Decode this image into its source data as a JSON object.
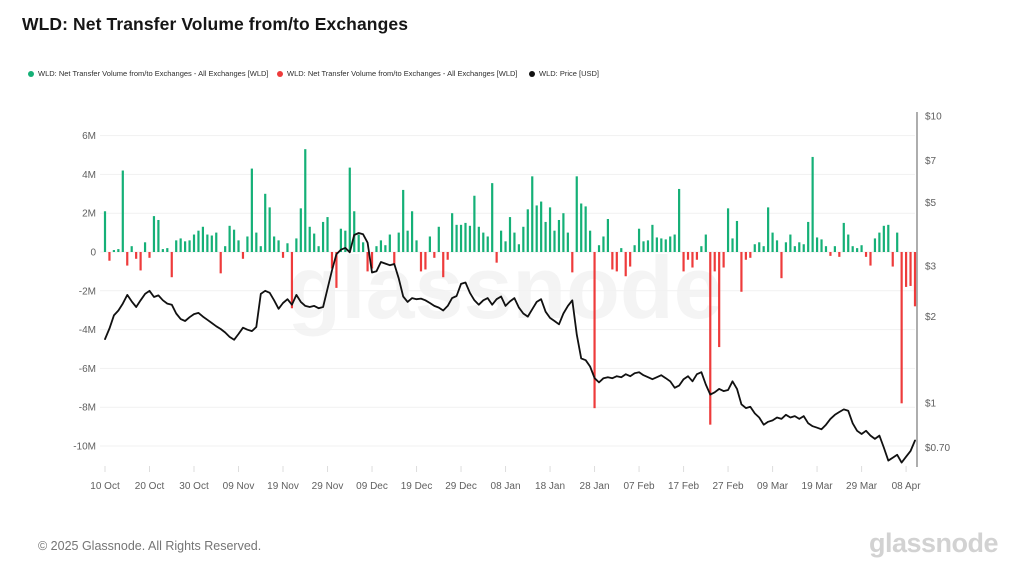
{
  "header": {
    "title": "WLD: Net Transfer Volume from/to Exchanges"
  },
  "legend": {
    "items": [
      {
        "label": "WLD: Net Transfer Volume from/to Exchanges - All Exchanges [WLD]",
        "color": "#15b077"
      },
      {
        "label": "WLD: Net Transfer Volume from/to Exchanges - All Exchanges [WLD]",
        "color": "#ee3b3b"
      },
      {
        "label": "WLD: Price [USD]",
        "color": "#111111"
      }
    ]
  },
  "watermark": "glassnode",
  "footer": {
    "copyright": "© 2025 Glassnode. All Rights Reserved.",
    "brand": "glassnode"
  },
  "chart_data": {
    "type": "bar",
    "title": "WLD: Net Transfer Volume from/to Exchanges",
    "x": {
      "start_date": "2024-10-10",
      "interval_days": 1,
      "count": 183,
      "tick_day_indices": [
        0,
        10,
        20,
        30,
        40,
        50,
        60,
        70,
        80,
        90,
        100,
        110,
        120,
        130,
        140,
        150,
        160,
        170,
        180
      ],
      "tick_labels": [
        "10 Oct",
        "20 Oct",
        "30 Oct",
        "09 Nov",
        "19 Nov",
        "29 Nov",
        "09 Dec",
        "19 Dec",
        "29 Dec",
        "08 Jan",
        "18 Jan",
        "28 Jan",
        "07 Feb",
        "17 Feb",
        "27 Feb",
        "09 Mar",
        "19 Mar",
        "29 Mar",
        "08 Apr"
      ]
    },
    "left_axis": {
      "title": "Net Transfer Volume (millions WLD)",
      "tick_labels": [
        "6M",
        "4M",
        "2M",
        "0",
        "-2M",
        "-4M",
        "-6M",
        "-8M",
        "-10M"
      ],
      "tick_values": [
        6,
        4,
        2,
        0,
        -2,
        -4,
        -6,
        -8,
        -10
      ],
      "range": [
        -11,
        7
      ],
      "grid": true
    },
    "right_axis": {
      "title": "Price (USD)",
      "scale": "log",
      "tick_labels": [
        "$10",
        "$7",
        "$5",
        "$3",
        "$2",
        "$1",
        "$0.70"
      ],
      "tick_values": [
        10,
        7,
        5,
        3,
        2,
        1,
        0.7
      ],
      "range": [
        0.55,
        10
      ]
    },
    "series": [
      {
        "name": "WLD: Net Transfer Volume from/to Exchanges - All Exchanges [WLD]",
        "type": "bar",
        "axis": "left",
        "unit": "M WLD",
        "color_positive": "#15b077",
        "color_negative": "#ee3b3b",
        "values": [
          2.1,
          -0.45,
          0.1,
          0.15,
          4.2,
          -0.7,
          0.3,
          -0.35,
          -0.95,
          0.5,
          -0.3,
          1.85,
          1.65,
          0.15,
          0.2,
          -1.3,
          0.6,
          0.7,
          0.55,
          0.6,
          0.9,
          1.1,
          1.3,
          0.9,
          0.85,
          1.0,
          -1.1,
          0.3,
          1.35,
          1.15,
          0.6,
          -0.35,
          0.8,
          4.3,
          1.0,
          0.3,
          3.0,
          2.3,
          0.8,
          0.6,
          -0.3,
          0.45,
          -2.9,
          0.7,
          2.25,
          5.3,
          1.3,
          0.95,
          0.3,
          1.55,
          1.8,
          -0.85,
          -1.85,
          1.2,
          1.1,
          4.35,
          2.1,
          0.9,
          0.5,
          -1.0,
          -0.85,
          0.3,
          0.6,
          0.35,
          0.9,
          -0.6,
          1.0,
          3.2,
          1.1,
          2.1,
          0.6,
          -1.0,
          -0.9,
          0.8,
          -0.3,
          1.3,
          -1.3,
          -0.4,
          2.0,
          1.4,
          1.4,
          1.5,
          1.35,
          2.9,
          1.3,
          1.0,
          0.8,
          3.55,
          -0.55,
          1.1,
          0.55,
          1.8,
          1.0,
          0.4,
          1.3,
          2.2,
          3.9,
          2.4,
          2.6,
          1.55,
          2.3,
          1.1,
          1.65,
          2.0,
          1.0,
          -1.05,
          3.9,
          2.5,
          2.35,
          1.1,
          -8.05,
          0.35,
          0.8,
          1.7,
          -0.9,
          -1.0,
          0.2,
          -1.25,
          -0.75,
          0.35,
          1.2,
          0.55,
          0.6,
          1.4,
          0.75,
          0.7,
          0.65,
          0.8,
          0.9,
          3.25,
          -1.0,
          -0.4,
          -0.8,
          -0.4,
          0.3,
          0.9,
          -8.9,
          -1.0,
          -4.9,
          -0.8,
          2.25,
          0.7,
          1.6,
          -2.05,
          -0.4,
          -0.3,
          0.4,
          0.5,
          0.3,
          2.3,
          1.0,
          0.6,
          -1.35,
          0.5,
          0.9,
          0.3,
          0.5,
          0.4,
          1.55,
          4.9,
          0.75,
          0.65,
          0.3,
          -0.2,
          0.3,
          -0.25,
          1.5,
          0.9,
          0.3,
          0.2,
          0.35,
          -0.25,
          -0.7,
          0.7,
          1.0,
          1.35,
          1.4,
          -0.75,
          1.0,
          -7.8,
          -1.8,
          -1.75,
          -2.8
        ]
      },
      {
        "name": "WLD: Price [USD]",
        "type": "line",
        "axis": "right",
        "unit": "USD",
        "color": "#111111",
        "values": [
          1.67,
          1.82,
          2.02,
          2.1,
          2.22,
          2.38,
          2.26,
          2.16,
          2.28,
          2.4,
          2.46,
          2.34,
          2.37,
          2.28,
          2.22,
          2.2,
          2.05,
          1.96,
          1.93,
          1.99,
          2.04,
          2.06,
          2.0,
          1.95,
          1.9,
          1.85,
          1.81,
          1.76,
          1.7,
          1.66,
          1.74,
          1.83,
          1.8,
          1.78,
          1.84,
          2.4,
          2.46,
          2.42,
          2.28,
          2.13,
          2.23,
          2.3,
          2.2,
          2.38,
          2.25,
          2.18,
          2.16,
          2.18,
          2.14,
          2.16,
          2.5,
          2.9,
          3.3,
          3.42,
          3.47,
          3.35,
          3.85,
          3.91,
          3.87,
          3.62,
          2.85,
          2.88,
          3.1,
          3.06,
          3.02,
          3.05,
          2.72,
          2.35,
          2.25,
          2.32,
          2.3,
          2.31,
          2.28,
          2.23,
          2.18,
          2.15,
          2.1,
          2.18,
          2.32,
          2.36,
          2.6,
          2.63,
          2.42,
          2.28,
          2.2,
          2.28,
          2.32,
          2.2,
          2.3,
          2.35,
          2.18,
          2.26,
          2.32,
          2.15,
          2.05,
          2.0,
          2.12,
          2.25,
          2.3,
          2.08,
          1.98,
          1.93,
          1.88,
          2.05,
          2.18,
          2.28,
          1.73,
          1.43,
          1.41,
          1.34,
          1.22,
          1.18,
          1.22,
          1.23,
          1.22,
          1.24,
          1.23,
          1.26,
          1.24,
          1.27,
          1.28,
          1.25,
          1.23,
          1.21,
          1.23,
          1.25,
          1.22,
          1.19,
          1.13,
          1.15,
          1.21,
          1.24,
          1.19,
          1.26,
          1.28,
          1.16,
          1.07,
          1.09,
          1.12,
          1.1,
          1.11,
          1.19,
          1.12,
          0.99,
          0.96,
          0.97,
          0.92,
          0.89,
          0.84,
          0.86,
          0.87,
          0.89,
          0.88,
          0.91,
          0.89,
          0.9,
          0.88,
          0.9,
          0.85,
          0.83,
          0.82,
          0.81,
          0.84,
          0.88,
          0.91,
          0.93,
          0.95,
          0.94,
          0.85,
          0.8,
          0.78,
          0.8,
          0.77,
          0.75,
          0.77,
          0.7,
          0.63,
          0.645,
          0.66,
          0.62,
          0.65,
          0.68,
          0.74
        ]
      }
    ],
    "colors": {
      "positive": "#15b077",
      "negative": "#ee3b3b",
      "price_line": "#111111",
      "grid": "#f1f1f1",
      "axis_text": "#5f5f5f",
      "axis_line": "#777777"
    },
    "legend_position": "top-left",
    "grid": true
  }
}
